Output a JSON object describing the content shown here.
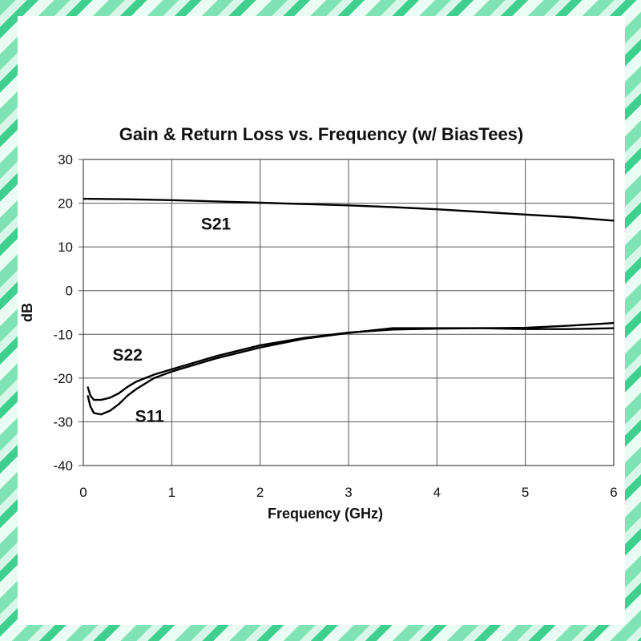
{
  "chart_data": {
    "type": "line",
    "title": "Gain & Return Loss vs. Frequency (w/ BiasTees)",
    "xlabel": "Frequency (GHz)",
    "ylabel": "dB",
    "xlim": [
      0,
      6
    ],
    "ylim": [
      -40,
      30
    ],
    "x_ticks": [
      "0",
      "1",
      "2",
      "3",
      "4",
      "5",
      "6"
    ],
    "y_ticks": [
      "30",
      "20",
      "10",
      "0",
      "-10",
      "-20",
      "-30",
      "-40"
    ],
    "grid": true,
    "legend": "none",
    "series": [
      {
        "name": "S21",
        "x": [
          0.0,
          0.5,
          1.0,
          1.5,
          2.0,
          2.5,
          3.0,
          3.5,
          4.0,
          4.5,
          5.0,
          5.5,
          6.0
        ],
        "values": [
          21.0,
          20.9,
          20.7,
          20.4,
          20.1,
          19.8,
          19.5,
          19.1,
          18.6,
          18.0,
          17.4,
          16.8,
          16.0
        ]
      },
      {
        "name": "S22",
        "x": [
          0.05,
          0.08,
          0.12,
          0.2,
          0.3,
          0.4,
          0.5,
          0.6,
          0.8,
          1.0,
          1.5,
          2.0,
          2.5,
          3.0,
          3.5,
          4.0,
          4.5,
          5.0,
          5.5,
          6.0
        ],
        "values": [
          -22.0,
          -24.0,
          -25.0,
          -25.0,
          -24.5,
          -23.5,
          -22.0,
          -20.8,
          -19.2,
          -18.0,
          -15.0,
          -12.5,
          -10.8,
          -9.6,
          -8.9,
          -8.7,
          -8.6,
          -8.5,
          -8.0,
          -7.4
        ]
      },
      {
        "name": "S11",
        "x": [
          0.05,
          0.08,
          0.12,
          0.2,
          0.3,
          0.4,
          0.5,
          0.6,
          0.8,
          1.0,
          1.5,
          2.0,
          2.5,
          3.0,
          3.5,
          4.0,
          4.5,
          5.0,
          5.5,
          6.0
        ],
        "values": [
          -24.0,
          -26.5,
          -28.0,
          -28.3,
          -27.5,
          -26.0,
          -24.0,
          -22.5,
          -20.0,
          -18.5,
          -15.5,
          -13.0,
          -11.0,
          -9.7,
          -8.6,
          -8.6,
          -8.6,
          -8.8,
          -8.8,
          -8.6
        ]
      }
    ],
    "annotations": [
      {
        "text": "S21",
        "x": 1.5,
        "y": 14
      },
      {
        "text": "S22",
        "x": 0.5,
        "y": -16
      },
      {
        "text": "S11",
        "x": 0.75,
        "y": -30
      }
    ]
  }
}
